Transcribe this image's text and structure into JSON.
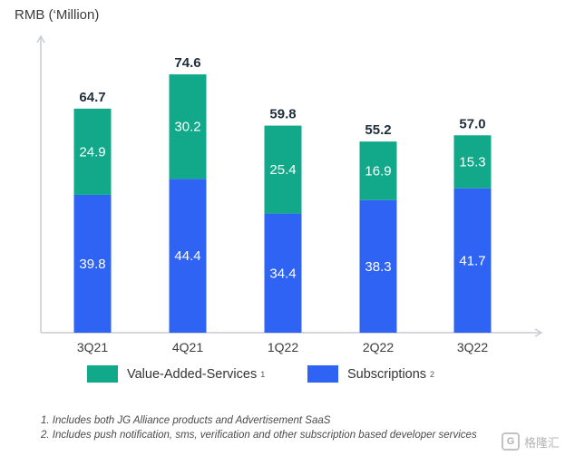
{
  "chart_data": {
    "type": "bar",
    "stacked": true,
    "ylabel": "RMB (‘Million)",
    "categories": [
      "3Q21",
      "4Q21",
      "1Q22",
      "2Q22",
      "3Q22"
    ],
    "series": [
      {
        "name": "Subscriptions",
        "values": [
          39.8,
          44.4,
          34.4,
          38.3,
          41.7
        ],
        "color": "#2f63f4"
      },
      {
        "name": "Value-Added-Services",
        "values": [
          24.9,
          30.2,
          25.4,
          16.9,
          15.3
        ],
        "color": "#12a98a"
      }
    ],
    "totals": [
      "64.7",
      "74.6",
      "59.8",
      "55.2",
      "57.0"
    ],
    "ylim": [
      0,
      90
    ],
    "grid": false
  },
  "legend": {
    "vas_label": "Value-Added-Services",
    "vas_note": "1",
    "subs_label": "Subscriptions",
    "subs_note": "2"
  },
  "footnotes": {
    "note1": "1. Includes both JG Alliance products and Advertisement SaaS",
    "note2": "2. Includes push notification, sms, verification and other subscription based developer services"
  },
  "watermark": {
    "text": "格隆汇",
    "icon": "gelonghui-logo-icon"
  }
}
